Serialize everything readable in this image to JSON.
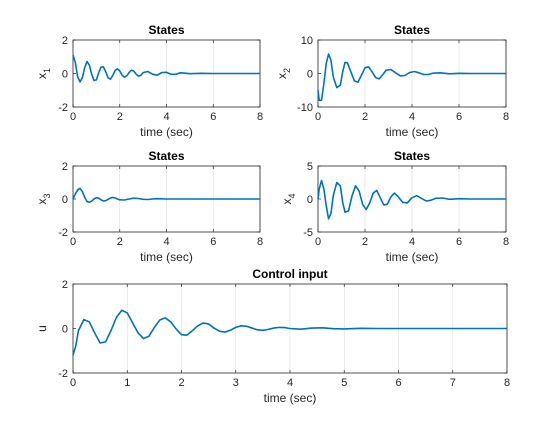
{
  "chart_data": [
    {
      "type": "line",
      "title": "States",
      "xlabel": "time (sec)",
      "ylabel": "x",
      "ylabel_sub": "1",
      "xlim": [
        0,
        8
      ],
      "ylim": [
        -2,
        2
      ],
      "xticks": [
        "0",
        "2",
        "4",
        "6",
        "8"
      ],
      "yticks": [
        "-2",
        "0",
        "2"
      ],
      "grid": "vertical",
      "color": "#0072bd",
      "series": [
        {
          "x": [
            0,
            0.1,
            0.2,
            0.3,
            0.4,
            0.5,
            0.6,
            0.7,
            0.8,
            0.9,
            1,
            1.1,
            1.2,
            1.3,
            1.4,
            1.5,
            1.6,
            1.7,
            1.8,
            1.9,
            2,
            2.1,
            2.2,
            2.3,
            2.4,
            2.5,
            2.6,
            2.7,
            2.8,
            2.9,
            3,
            3.2,
            3.4,
            3.6,
            3.8,
            4,
            4.2,
            4.4,
            4.6,
            4.8,
            5,
            5.5,
            6,
            6.5,
            7,
            7.5,
            8
          ],
          "values": [
            1.1,
            0.65,
            -0.2,
            -0.5,
            -0.25,
            0.35,
            0.72,
            0.5,
            -0.05,
            -0.42,
            -0.38,
            0.05,
            0.38,
            0.4,
            0.1,
            -0.25,
            -0.34,
            -0.12,
            0.18,
            0.28,
            0.15,
            -0.1,
            -0.22,
            -0.14,
            0.06,
            0.2,
            0.14,
            -0.04,
            -0.16,
            -0.11,
            0.05,
            0.12,
            -0.04,
            -0.1,
            0.06,
            0.07,
            -0.05,
            -0.04,
            0.04,
            0.02,
            -0.01,
            0.01,
            0,
            0,
            0,
            0,
            0
          ]
        }
      ]
    },
    {
      "type": "line",
      "title": "States",
      "xlabel": "time (sec)",
      "ylabel": "x",
      "ylabel_sub": "2",
      "xlim": [
        0,
        8
      ],
      "ylim": [
        -10,
        10
      ],
      "xticks": [
        "0",
        "2",
        "4",
        "6",
        "8"
      ],
      "yticks": [
        "-10",
        "0",
        "10"
      ],
      "grid": "vertical",
      "color": "#0072bd",
      "series": [
        {
          "x": [
            0,
            0.05,
            0.15,
            0.25,
            0.35,
            0.45,
            0.55,
            0.65,
            0.8,
            0.95,
            1.05,
            1.15,
            1.25,
            1.4,
            1.55,
            1.7,
            1.85,
            2,
            2.15,
            2.3,
            2.45,
            2.6,
            2.75,
            2.9,
            3.1,
            3.3,
            3.5,
            3.7,
            3.9,
            4.1,
            4.3,
            4.5,
            4.7,
            4.9,
            5.2,
            5.6,
            6,
            6.5,
            7,
            7.5,
            8
          ],
          "values": [
            -5,
            -8,
            -8,
            -3,
            3,
            5.8,
            4,
            -1,
            -4.2,
            -3.5,
            0.5,
            3.3,
            3.2,
            0.5,
            -2.2,
            -2.6,
            -0.5,
            1.7,
            2,
            0.5,
            -1.2,
            -1.6,
            -0.4,
            1.0,
            1.2,
            0.2,
            -0.7,
            -0.6,
            0.3,
            0.6,
            0.2,
            -0.3,
            -0.3,
            0.1,
            0.2,
            -0.1,
            0.05,
            0,
            0,
            0,
            0
          ]
        }
      ]
    },
    {
      "type": "line",
      "title": "States",
      "xlabel": "time (sec)",
      "ylabel": "x",
      "ylabel_sub": "3",
      "xlim": [
        0,
        8
      ],
      "ylim": [
        -2,
        2
      ],
      "xticks": [
        "0",
        "2",
        "4",
        "6",
        "8"
      ],
      "yticks": [
        "-2",
        "0",
        "2"
      ],
      "grid": "vertical",
      "color": "#0072bd",
      "series": [
        {
          "x": [
            0,
            0.1,
            0.2,
            0.3,
            0.4,
            0.5,
            0.6,
            0.7,
            0.8,
            0.9,
            1,
            1.1,
            1.2,
            1.3,
            1.4,
            1.5,
            1.6,
            1.7,
            1.8,
            1.9,
            2,
            2.2,
            2.4,
            2.6,
            2.8,
            3,
            3.2,
            3.4,
            3.6,
            3.8,
            4,
            4.5,
            5,
            5.5,
            6,
            7,
            8
          ],
          "values": [
            0,
            0.3,
            0.55,
            0.65,
            0.45,
            0.1,
            -0.15,
            -0.2,
            -0.12,
            0.0,
            0.08,
            0.05,
            -0.05,
            -0.12,
            -0.1,
            -0.02,
            0.06,
            0.1,
            0.06,
            0.0,
            -0.05,
            -0.06,
            0.0,
            0.05,
            0.03,
            -0.02,
            -0.03,
            0.0,
            0.02,
            0.01,
            0,
            0,
            0,
            0,
            0,
            0,
            0
          ]
        }
      ]
    },
    {
      "type": "line",
      "title": "States",
      "xlabel": "time (sec)",
      "ylabel": "x",
      "ylabel_sub": "4",
      "xlim": [
        0,
        8
      ],
      "ylim": [
        -5,
        5
      ],
      "xticks": [
        "0",
        "2",
        "4",
        "6",
        "8"
      ],
      "yticks": [
        "-5",
        "0",
        "5"
      ],
      "grid": "vertical",
      "color": "#0072bd",
      "series": [
        {
          "x": [
            0,
            0.05,
            0.15,
            0.25,
            0.35,
            0.45,
            0.55,
            0.65,
            0.8,
            0.95,
            1.05,
            1.15,
            1.3,
            1.45,
            1.6,
            1.75,
            1.9,
            2.05,
            2.2,
            2.35,
            2.5,
            2.65,
            2.8,
            2.95,
            3.1,
            3.25,
            3.4,
            3.6,
            3.8,
            4.0,
            4.2,
            4.4,
            4.6,
            4.8,
            5.0,
            5.3,
            5.6,
            6,
            6.5,
            7,
            8
          ],
          "values": [
            0,
            1.5,
            2.8,
            1.5,
            -1.0,
            -3.0,
            -2.2,
            0.5,
            2.5,
            2.0,
            -0.5,
            -2.0,
            -1.8,
            0.5,
            2.0,
            1.2,
            -0.8,
            -1.6,
            -0.6,
            0.9,
            1.3,
            0.2,
            -0.9,
            -0.8,
            0.3,
            0.9,
            0.4,
            -0.5,
            -0.6,
            0.2,
            0.5,
            0.1,
            -0.3,
            -0.2,
            0.1,
            0.15,
            -0.05,
            0.05,
            0,
            0,
            0
          ]
        }
      ]
    },
    {
      "type": "line",
      "title": "Control input",
      "xlabel": "time (sec)",
      "ylabel": "u",
      "ylabel_sub": "",
      "xlim": [
        0,
        8
      ],
      "ylim": [
        -2,
        2
      ],
      "xticks": [
        "0",
        "1",
        "2",
        "3",
        "4",
        "5",
        "6",
        "7",
        "8"
      ],
      "yticks": [
        "-2",
        "0",
        "2"
      ],
      "grid": "vertical",
      "color": "#0072bd",
      "series": [
        {
          "x": [
            0,
            0.05,
            0.1,
            0.2,
            0.3,
            0.4,
            0.5,
            0.6,
            0.7,
            0.8,
            0.9,
            1.0,
            1.1,
            1.2,
            1.3,
            1.4,
            1.5,
            1.6,
            1.7,
            1.8,
            1.9,
            2.0,
            2.1,
            2.2,
            2.3,
            2.4,
            2.5,
            2.6,
            2.7,
            2.8,
            2.9,
            3.0,
            3.1,
            3.2,
            3.3,
            3.4,
            3.5,
            3.6,
            3.7,
            3.8,
            3.9,
            4.0,
            4.2,
            4.4,
            4.6,
            4.8,
            5.0,
            5.3,
            5.6,
            6.0,
            6.5,
            7.0,
            7.5,
            8.0
          ],
          "values": [
            -1.2,
            -0.8,
            -0.1,
            0.4,
            0.3,
            -0.2,
            -0.65,
            -0.6,
            -0.1,
            0.5,
            0.82,
            0.7,
            0.25,
            -0.2,
            -0.45,
            -0.35,
            0.05,
            0.38,
            0.48,
            0.3,
            -0.02,
            -0.28,
            -0.3,
            -0.1,
            0.12,
            0.25,
            0.2,
            0.02,
            -0.12,
            -0.16,
            -0.08,
            0.05,
            0.12,
            0.1,
            0.02,
            -0.06,
            -0.08,
            -0.04,
            0.02,
            0.05,
            0.04,
            0.0,
            -0.03,
            0.02,
            0.03,
            -0.01,
            -0.02,
            0.01,
            0.0,
            0.0,
            0.0,
            0.0,
            0.0,
            0.0
          ]
        }
      ]
    }
  ]
}
